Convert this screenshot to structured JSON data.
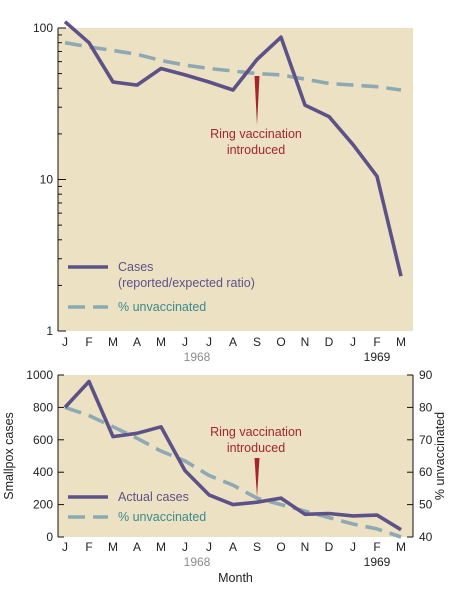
{
  "colors": {
    "panel_bg": "#ede1c4",
    "cases_line": "#5d5288",
    "unvaccinated_line": "#8daab4",
    "annotation": "#a3252e",
    "axis_text": "#222222",
    "year_text": "#8b8b8b",
    "legend_unvaccinated_text": "#3b8a8e"
  },
  "chart_data": [
    {
      "type": "line",
      "y_scale": "log",
      "ylim": [
        1,
        100
      ],
      "y_ticks": [
        1,
        10,
        100
      ],
      "y_tick_labels": [
        "1",
        "10",
        "100"
      ],
      "categories": [
        "J",
        "F",
        "M",
        "A",
        "M",
        "J",
        "J",
        "A",
        "S",
        "O",
        "N",
        "D",
        "J",
        "F",
        "M"
      ],
      "years": [
        {
          "label": "1968",
          "month_index": 5.5,
          "color": "#8b8b8b"
        },
        {
          "label": "1969",
          "month_index": 13,
          "color": "#222222"
        }
      ],
      "annotation": {
        "lines": [
          "Ring vaccination",
          "introduced"
        ],
        "month_index": 8
      },
      "legend": {
        "position": "bottom-left"
      },
      "series": [
        {
          "name": "Cases",
          "name_line2": "(reported/expected ratio)",
          "style": "solid",
          "values": [
            110,
            80,
            44,
            42,
            54,
            49,
            44,
            39,
            62,
            87,
            31,
            26,
            17,
            10.5,
            2.3
          ]
        },
        {
          "name": "% unvaccinated",
          "style": "dashed",
          "values": [
            80,
            75,
            71,
            67,
            61,
            57,
            54,
            52,
            50,
            49,
            46,
            43,
            42,
            41,
            39
          ]
        }
      ]
    },
    {
      "type": "line",
      "ylabel": "Smallpox cases",
      "ylim": [
        0,
        1000
      ],
      "y_ticks": [
        0,
        200,
        400,
        600,
        800,
        1000
      ],
      "y_tick_labels": [
        "0",
        "200",
        "400",
        "600",
        "800",
        "1000"
      ],
      "y2label": "% unvaccinated",
      "y2lim": [
        40,
        90
      ],
      "y2_ticks": [
        40,
        50,
        60,
        70,
        80,
        90
      ],
      "y2_tick_labels": [
        "40",
        "50",
        "60",
        "70",
        "80",
        "90"
      ],
      "xlabel": "Month",
      "categories": [
        "J",
        "F",
        "M",
        "A",
        "M",
        "J",
        "J",
        "A",
        "S",
        "O",
        "N",
        "D",
        "J",
        "F",
        "M"
      ],
      "years": [
        {
          "label": "1968",
          "month_index": 5.5,
          "color": "#8b8b8b"
        },
        {
          "label": "1969",
          "month_index": 13,
          "color": "#222222"
        }
      ],
      "annotation": {
        "lines": [
          "Ring vaccination",
          "introduced"
        ],
        "month_index": 8
      },
      "legend": {
        "position": "bottom-left"
      },
      "series": [
        {
          "name": "Actual cases",
          "style": "solid",
          "axis": "left",
          "values": [
            800,
            960,
            620,
            640,
            680,
            410,
            260,
            200,
            215,
            240,
            140,
            145,
            130,
            135,
            45
          ]
        },
        {
          "name": "% unvaccinated",
          "style": "dashed",
          "axis": "right",
          "values": [
            80,
            77.5,
            74,
            70.5,
            66.5,
            63.5,
            59,
            56,
            52,
            50,
            48,
            46,
            44,
            42.5,
            40
          ]
        }
      ]
    }
  ]
}
